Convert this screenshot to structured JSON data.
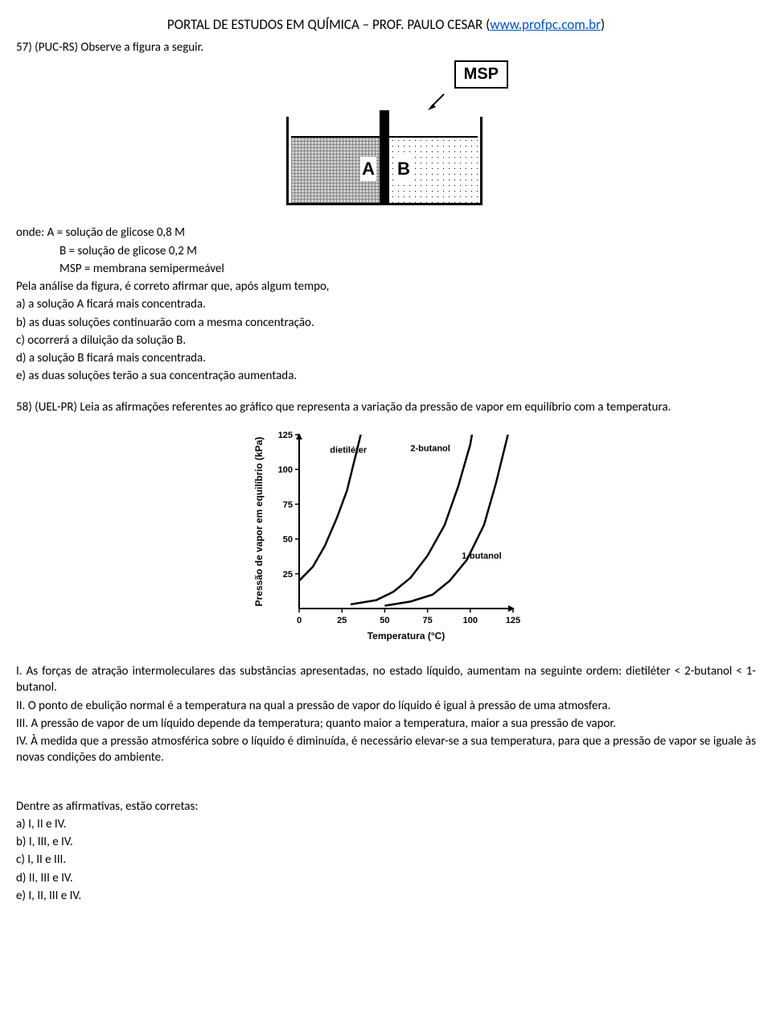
{
  "header": {
    "prefix": "PORTAL DE ESTUDOS EM QUÍMICA – PROF. PAULO CESAR (",
    "link_text": "www.profpc.com.br",
    "suffix": ")"
  },
  "q57": {
    "prompt": "57) (PUC-RS) Observe a figura a seguir.",
    "figure": {
      "msp_label": "MSP",
      "compA_label": "A",
      "compB_label": "B"
    },
    "onde_label": "onde:",
    "line_A": "A = solução de glicose 0,8 M",
    "line_B": "B = solução de glicose 0,2 M",
    "line_MSP": "MSP = membrana semipermeável",
    "afirmar": "Pela análise da figura, é correto afirmar que, após algum tempo,",
    "opt_a": "a) a solução A ficará mais concentrada.",
    "opt_b": "b) as duas soluções continuarão com a mesma concentração.",
    "opt_c": "c) ocorrerá a diluição da solução B.",
    "opt_d": "d) a solução B ficará mais concentrada.",
    "opt_e": "e) as duas soluções terão a sua concentração aumentada."
  },
  "q58": {
    "prompt": "58) (UEL-PR) Leia as afirmações referentes ao gráfico que representa a variação da pressão de vapor em equilíbrio com a temperatura.",
    "chart": {
      "type": "line",
      "xlabel": "Temperatura (°C)",
      "ylabel": "Pressão de vapor em equilíbrio (kPa)",
      "xlim": [
        0,
        125
      ],
      "ylim": [
        0,
        125
      ],
      "xtick_step": 25,
      "ytick_step": 25,
      "label_fontsize": 12,
      "tick_fontsize": 11,
      "axis_color": "#000000",
      "line_color": "#000000",
      "line_width": 2.5,
      "background_color": "#ffffff",
      "series": [
        {
          "name": "dietiléter",
          "label_x": 18,
          "label_y": 112,
          "points": [
            [
              0,
              20
            ],
            [
              8,
              30
            ],
            [
              15,
              45
            ],
            [
              22,
              65
            ],
            [
              28,
              85
            ],
            [
              32,
              105
            ],
            [
              36,
              125
            ]
          ]
        },
        {
          "name": "2-butanol",
          "label_x": 65,
          "label_y": 113,
          "points": [
            [
              30,
              3
            ],
            [
              45,
              6
            ],
            [
              55,
              12
            ],
            [
              65,
              22
            ],
            [
              75,
              38
            ],
            [
              85,
              60
            ],
            [
              93,
              88
            ],
            [
              100,
              118
            ],
            [
              101,
              125
            ]
          ]
        },
        {
          "name": "1-butanol",
          "label_x": 95,
          "label_y": 36,
          "points": [
            [
              50,
              2
            ],
            [
              65,
              5
            ],
            [
              78,
              10
            ],
            [
              88,
              20
            ],
            [
              98,
              35
            ],
            [
              108,
              60
            ],
            [
              115,
              90
            ],
            [
              121,
              120
            ],
            [
              122,
              125
            ]
          ]
        }
      ]
    },
    "stmt_I": "I. As forças de atração intermoleculares das substâncias apresentadas, no estado líquido, aumentam na seguinte ordem: dietiléter < 2-butanol < 1-butanol.",
    "stmt_II": "II. O ponto de ebulição normal é a temperatura na qual a pressão de vapor do líquido é igual à pressão de uma atmosfera.",
    "stmt_III": "III. A pressão de vapor de um líquido depende da temperatura; quanto maior a temperatura, maior a sua pressão de vapor.",
    "stmt_IV": "IV. À medida que a pressão atmosférica sobre o líquido é diminuída, é necessário elevar-se a sua temperatura, para que a pressão de vapor se iguale às novas condições do ambiente.",
    "dentre": "Dentre as afirmativas, estão corretas:",
    "opt_a": "a) I, II e IV.",
    "opt_b": "b) I, III, e IV.",
    "opt_c": "c) I, II e III.",
    "opt_d": "d) II, III e IV.",
    "opt_e": "e) I, II, III e IV."
  }
}
